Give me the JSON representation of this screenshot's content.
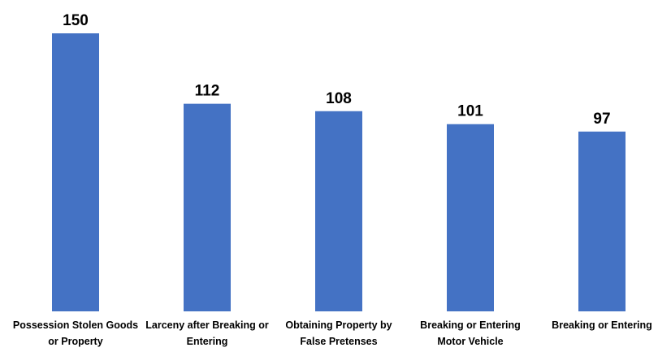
{
  "chart_data": {
    "type": "bar",
    "categories": [
      "Possession Stolen Goods or Property",
      "Larceny after Breaking or Entering",
      "Obtaining Property by False Pretenses",
      "Breaking or Entering Motor Vehicle",
      "Breaking or Entering"
    ],
    "values": [
      150,
      112,
      108,
      101,
      97
    ],
    "color": "#4472c4"
  }
}
